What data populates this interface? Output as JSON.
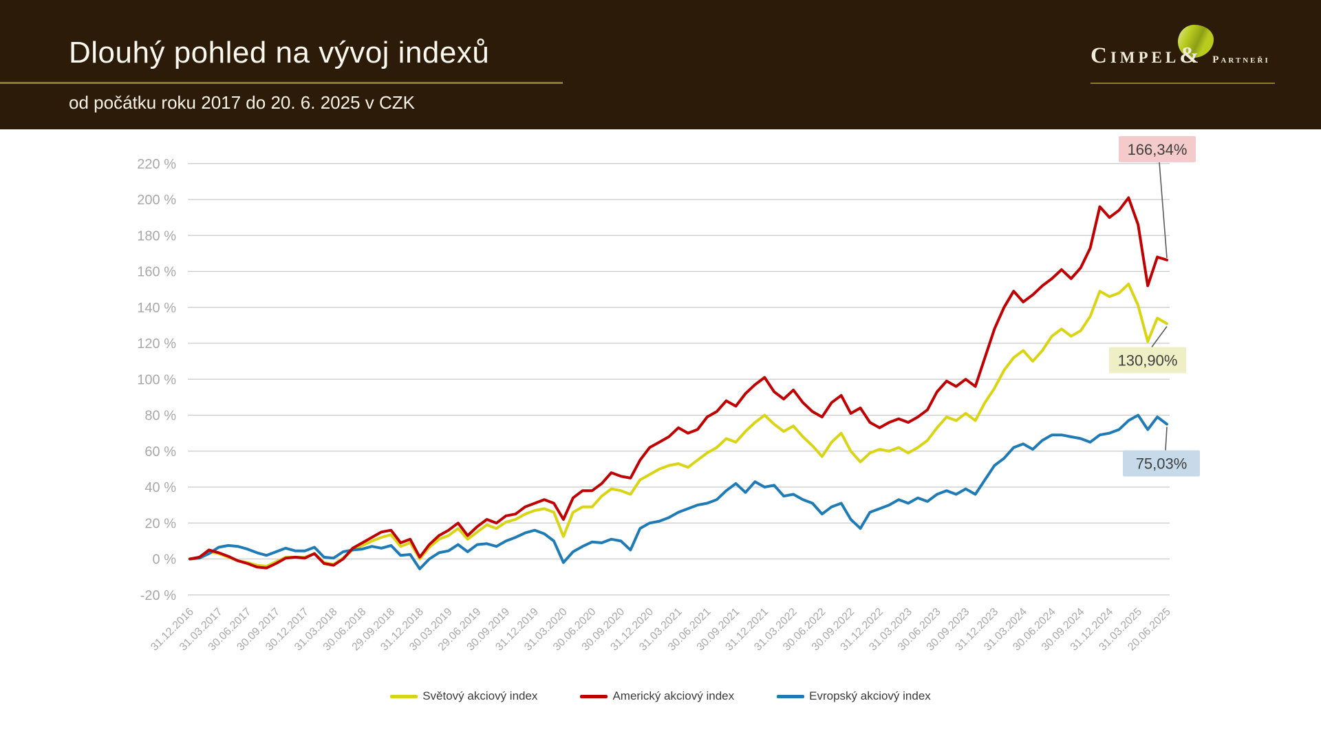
{
  "header": {
    "title": "Dlouhý pohled na vývoj indexů",
    "subtitle": "od počátku roku 2017 do 20. 6. 2025 v CZK"
  },
  "logo": {
    "name": "Cimpel",
    "amp": "&",
    "suffix": "Partneři",
    "leaf_icon": "leaf-blob-icon",
    "accent_color": "#B9CC1E",
    "underline_color": "#8D7D20"
  },
  "chart_data": {
    "type": "line",
    "grid": true,
    "legend_position": "bottom",
    "ylim": [
      -20,
      220
    ],
    "y_ticks": [
      -20,
      0,
      20,
      40,
      60,
      80,
      100,
      120,
      140,
      160,
      180,
      200,
      220
    ],
    "y_tick_labels": [
      "-20 %",
      "0 %",
      "20 %",
      "40 %",
      "60 %",
      "80 %",
      "100 %",
      "120 %",
      "140 %",
      "160 %",
      "180 %",
      "200 %",
      "220 %"
    ],
    "x_tick_labels": [
      "31.12.2016",
      "31.03.2017",
      "30.06.2017",
      "30.09.2017",
      "30.12.2017",
      "31.03.2018",
      "30.06.2018",
      "29.09.2018",
      "31.12.2018",
      "30.03.2019",
      "29.06.2019",
      "30.09.2019",
      "31.12.2019",
      "31.03.2020",
      "30.06.2020",
      "30.09.2020",
      "31.12.2020",
      "31.03.2021",
      "30.06.2021",
      "30.09.2021",
      "31.12.2021",
      "31.03.2022",
      "30.06.2022",
      "30.09.2022",
      "31.12.2022",
      "31.03.2023",
      "30.06.2023",
      "30.09.2023",
      "31.12.2023",
      "31.03.2024",
      "30.06.2024",
      "30.09.2024",
      "31.12.2024",
      "31.03.2025",
      "20.06.2025"
    ],
    "x_resolution": "monthly, quarterly tick labels",
    "series": [
      {
        "name": "Světový akciový index",
        "color": "#D9D515",
        "end_label": "130,90%",
        "end_label_bg": "#EFEFC6",
        "values": [
          0,
          0.5,
          4,
          3,
          1,
          -1,
          -2,
          -3.5,
          -4,
          -1.5,
          1,
          1,
          1,
          3,
          -2,
          -3,
          0.5,
          5,
          7.5,
          10,
          12,
          13.5,
          7,
          9,
          0,
          6.5,
          11,
          13,
          17,
          11,
          15,
          19,
          17,
          20.5,
          22,
          25,
          27,
          28,
          26,
          12.5,
          26,
          29,
          29,
          35,
          39,
          38,
          36,
          44,
          47,
          50,
          52,
          53,
          51,
          55,
          59,
          62,
          67,
          65,
          71,
          76,
          80,
          75,
          71,
          74,
          68,
          63,
          57,
          65,
          70,
          60,
          54,
          59,
          61,
          60,
          62,
          59,
          62,
          66,
          73,
          79,
          77,
          81,
          77,
          87,
          95,
          105,
          112,
          116,
          110,
          116,
          124,
          128,
          124,
          127,
          135,
          149,
          146,
          148,
          153,
          141,
          121,
          134,
          130.9
        ]
      },
      {
        "name": "Americký akciový index",
        "color": "#C00000",
        "end_label": "166,34%",
        "end_label_bg": "#F4CACA",
        "values": [
          0,
          1,
          5,
          3.5,
          1.5,
          -1,
          -2.5,
          -4.5,
          -5,
          -2.5,
          0.5,
          1,
          0.5,
          3,
          -2.5,
          -3.5,
          0,
          6,
          9,
          12,
          15,
          16,
          9,
          11,
          1,
          8,
          13,
          16,
          20,
          13,
          18,
          22,
          20,
          24,
          25,
          29,
          31,
          33,
          31,
          22,
          34,
          38,
          38,
          42,
          48,
          46,
          45,
          55,
          62,
          65,
          68,
          73,
          70,
          72,
          79,
          82,
          88,
          85,
          92,
          97,
          101,
          93,
          89,
          94,
          87,
          82,
          79,
          87,
          91,
          81,
          84,
          76,
          73,
          76,
          78,
          76,
          79,
          83,
          93,
          99,
          96,
          100,
          96,
          112,
          128,
          140,
          149,
          143,
          147,
          152,
          156,
          161,
          156,
          162,
          173,
          196,
          190,
          194,
          201,
          186,
          152,
          168,
          166.34
        ]
      },
      {
        "name": "Evropský akciový index",
        "color": "#1F7BB6",
        "end_label": "75,03%",
        "end_label_bg": "#C6DAE9",
        "values": [
          0,
          0.5,
          3,
          6.5,
          7.5,
          7,
          5.5,
          3.5,
          2,
          4,
          6,
          4.5,
          4.5,
          6.5,
          1,
          0.5,
          4,
          5,
          5.5,
          7,
          6,
          7.5,
          2,
          2.5,
          -5.5,
          0,
          3.5,
          4.5,
          8,
          4,
          8,
          8.5,
          7,
          10,
          12,
          14.5,
          16,
          14,
          10,
          -2,
          4,
          7,
          9.5,
          9,
          11,
          10,
          5,
          17,
          20,
          21,
          23,
          26,
          28,
          30,
          31,
          33,
          38,
          42,
          37,
          43,
          40,
          41,
          35,
          36,
          33,
          31,
          25,
          29,
          31,
          22,
          17,
          26,
          28,
          30,
          33,
          31,
          34,
          32,
          36,
          38,
          36,
          39,
          36,
          44,
          52,
          56,
          62,
          64,
          61,
          66,
          69,
          69,
          68,
          67,
          65,
          69,
          70,
          72,
          77,
          80,
          72,
          79,
          75.03
        ]
      }
    ]
  }
}
